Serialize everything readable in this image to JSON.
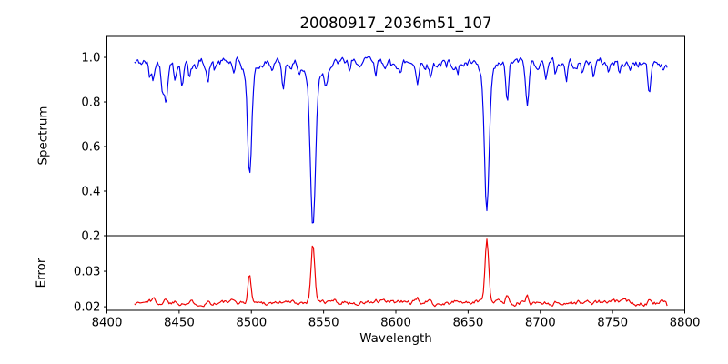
{
  "figure": {
    "title": "20080917_2036m51_107",
    "background_color": "#ffffff",
    "frame_color": "#000000"
  },
  "chart_data": [
    {
      "type": "line",
      "panel": "spectrum",
      "title": "20080917_2036m51_107",
      "xlabel": "",
      "ylabel": "Spectrum",
      "xlim": [
        8400,
        8800
      ],
      "ylim": [
        0.2,
        1.094
      ],
      "grid": false,
      "legend": "none",
      "xticks": [],
      "xtick_labels": [],
      "yticks": [
        0.2,
        0.4,
        0.6,
        0.8,
        1.0
      ],
      "ytick_labels": [
        "0.2",
        "0.4",
        "0.6",
        "0.8",
        "1.0"
      ],
      "frame_color": "#000000",
      "major_absorption_lines": [
        {
          "wavelength": 8441,
          "min_value": 0.8
        },
        {
          "wavelength": 8499,
          "min_value": 0.47
        },
        {
          "wavelength": 8543,
          "min_value": 0.23
        },
        {
          "wavelength": 8663,
          "min_value": 0.29
        },
        {
          "wavelength": 8677,
          "min_value": 0.78
        },
        {
          "wavelength": 8691,
          "min_value": 0.76
        },
        {
          "wavelength": 8776,
          "min_value": 0.83
        }
      ],
      "series": [
        {
          "name": "spectrum",
          "color": "#0000ee",
          "x_start": 8419,
          "x_end": 8788,
          "sample_step": 0.8,
          "baseline": 0.975,
          "feature_sign": -1,
          "noise_seed": 42,
          "noise_persistence": 0.72,
          "noise_innovation": 0.032,
          "features": [
            [
              8429.5,
              0.07,
              1.0
            ],
            [
              8432.0,
              0.085,
              1.1
            ],
            [
              8438.5,
              0.11,
              1.3
            ],
            [
              8441.0,
              0.17,
              1.3
            ],
            [
              8447.0,
              0.075,
              1.0
            ],
            [
              8452.0,
              0.1,
              1.1
            ],
            [
              8457.0,
              0.06,
              1.0
            ],
            [
              8462.0,
              0.045,
              0.9
            ],
            [
              8470.0,
              0.08,
              1.1
            ],
            [
              8474.5,
              0.04,
              0.9
            ],
            [
              8488.0,
              0.055,
              1.0
            ],
            [
              8498.8,
              0.455,
              2.0
            ],
            [
              8498.8,
              0.05,
              5.5
            ],
            [
              8514.0,
              0.035,
              0.9
            ],
            [
              8522.0,
              0.1,
              1.4
            ],
            [
              8533.0,
              0.035,
              0.9
            ],
            [
              8542.6,
              0.67,
              2.4
            ],
            [
              8542.6,
              0.07,
              7.0
            ],
            [
              8551.5,
              0.07,
              1.6
            ],
            [
              8568.0,
              0.035,
              0.9
            ],
            [
              8572.5,
              0.03,
              0.9
            ],
            [
              8586.0,
              0.07,
              1.2
            ],
            [
              8597.0,
              0.03,
              0.9
            ],
            [
              8603.5,
              0.04,
              1.0
            ],
            [
              8615.0,
              0.08,
              1.2
            ],
            [
              8624.0,
              0.065,
              1.1
            ],
            [
              8635.0,
              0.035,
              0.9
            ],
            [
              8643.0,
              0.05,
              1.0
            ],
            [
              8663.0,
              0.615,
              2.2
            ],
            [
              8663.0,
              0.07,
              7.0
            ],
            [
              8677.0,
              0.185,
              1.4
            ],
            [
              8691.0,
              0.205,
              1.5
            ],
            [
              8704.0,
              0.055,
              1.0
            ],
            [
              8710.5,
              0.05,
              1.0
            ],
            [
              8718.0,
              0.075,
              1.1
            ],
            [
              8729.0,
              0.055,
              1.0
            ],
            [
              8737.0,
              0.05,
              1.0
            ],
            [
              8747.0,
              0.035,
              0.9
            ],
            [
              8755.0,
              0.055,
              1.0
            ],
            [
              8762.0,
              0.04,
              0.9
            ],
            [
              8775.5,
              0.155,
              1.3
            ],
            [
              8785.0,
              0.03,
              0.9
            ]
          ]
        }
      ]
    },
    {
      "type": "line",
      "panel": "error",
      "title": "",
      "xlabel": "Wavelength",
      "ylabel": "Error",
      "xlim": [
        8400,
        8800
      ],
      "ylim": [
        0.019,
        0.04
      ],
      "grid": false,
      "legend": "none",
      "xticks": [
        8400,
        8450,
        8500,
        8550,
        8600,
        8650,
        8700,
        8750,
        8800
      ],
      "xtick_labels": [
        "8400",
        "8450",
        "8500",
        "8550",
        "8600",
        "8650",
        "8700",
        "8750",
        "8800"
      ],
      "yticks": [
        0.02,
        0.03
      ],
      "ytick_labels": [
        "0.02",
        "0.03"
      ],
      "frame_color": "#000000",
      "major_error_peaks": [
        {
          "wavelength": 8431,
          "peak_value": 0.0225
        },
        {
          "wavelength": 8441,
          "peak_value": 0.0225
        },
        {
          "wavelength": 8499,
          "peak_value": 0.029
        },
        {
          "wavelength": 8543,
          "peak_value": 0.0375
        },
        {
          "wavelength": 8663,
          "peak_value": 0.039
        },
        {
          "wavelength": 8677,
          "peak_value": 0.0235
        },
        {
          "wavelength": 8691,
          "peak_value": 0.023
        },
        {
          "wavelength": 8776,
          "peak_value": 0.023
        }
      ],
      "series": [
        {
          "name": "error",
          "color": "#ee0000",
          "x_start": 8419,
          "x_end": 8788,
          "sample_step": 0.8,
          "baseline": 0.0212,
          "feature_sign": 1,
          "noise_seed": 1337,
          "noise_persistence": 0.72,
          "noise_innovation": 0.0011,
          "features": [
            [
              8429.5,
              0.0011,
              1.1
            ],
            [
              8432.0,
              0.0012,
              1.1
            ],
            [
              8441.0,
              0.0013,
              1.4
            ],
            [
              8447.0,
              0.0007,
              1.0
            ],
            [
              8452.0,
              0.0007,
              1.0
            ],
            [
              8470.0,
              0.0005,
              1.0
            ],
            [
              8498.8,
              0.0078,
              1.6
            ],
            [
              8522.0,
              0.0005,
              1.2
            ],
            [
              8542.6,
              0.0155,
              1.8
            ],
            [
              8542.6,
              0.001,
              5.0
            ],
            [
              8557.0,
              0.0007,
              1.0
            ],
            [
              8563.0,
              0.0006,
              1.0
            ],
            [
              8586.0,
              0.0005,
              1.0
            ],
            [
              8615.0,
              0.0006,
              1.0
            ],
            [
              8624.0,
              0.0007,
              1.0
            ],
            [
              8643.0,
              0.0005,
              1.0
            ],
            [
              8663.0,
              0.017,
              1.8
            ],
            [
              8663.0,
              0.001,
              5.0
            ],
            [
              8677.0,
              0.0022,
              1.3
            ],
            [
              8691.0,
              0.0017,
              1.3
            ],
            [
              8755.0,
              0.0005,
              1.0
            ],
            [
              8775.5,
              0.0017,
              1.2
            ],
            [
              8788.0,
              -0.0013,
              1.5
            ]
          ]
        }
      ]
    }
  ]
}
